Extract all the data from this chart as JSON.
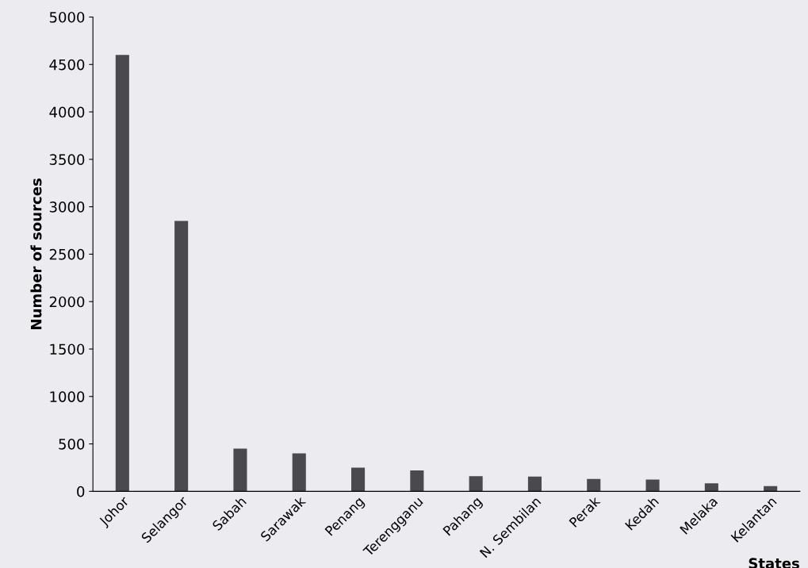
{
  "chart_data": {
    "type": "bar",
    "xlabel": "States",
    "ylabel": "Number of sources",
    "categories": [
      "Johor",
      "Selangor",
      "Sabah",
      "Sarawak",
      "Penang",
      "Terengganu",
      "Pahang",
      "N. Sembilan",
      "Perak",
      "Kedah",
      "Melaka",
      "Kelantan"
    ],
    "values": [
      4600,
      2850,
      450,
      400,
      250,
      220,
      160,
      155,
      130,
      125,
      85,
      55
    ],
    "color": "#4a4a4e",
    "ylim": [
      0,
      5000
    ],
    "yticks": [
      0,
      500,
      1000,
      1500,
      2000,
      2500,
      3000,
      3500,
      4000,
      4500,
      5000
    ],
    "grid": false
  }
}
